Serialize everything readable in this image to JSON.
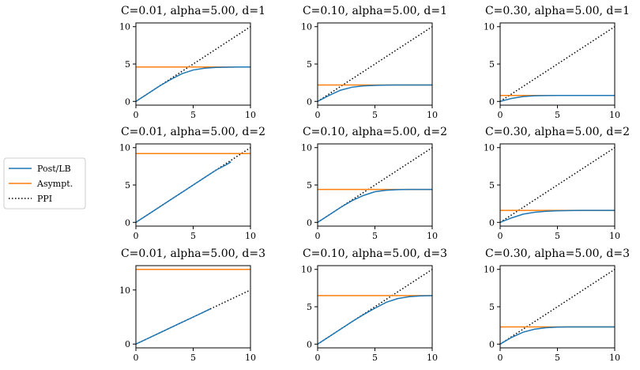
{
  "legend": {
    "entries": [
      {
        "label": "Post/LB",
        "color": "#1f77b4",
        "style": "solid"
      },
      {
        "label": "Asympt.",
        "color": "#ff7f0e",
        "style": "solid"
      },
      {
        "label": "PPI",
        "color": "#000000",
        "style": "dotted"
      }
    ]
  },
  "chart_data": [
    {
      "type": "line",
      "title": "C=0.01, alpha=5.00, d=1",
      "xlim": [
        0,
        10
      ],
      "ylim": [
        -0.5,
        10.5
      ],
      "xticks": [
        0,
        5,
        10
      ],
      "yticks": [
        0,
        5,
        10
      ],
      "asymptote": 4.6,
      "post_lb": {
        "x": [
          0,
          1,
          2,
          3,
          4,
          5,
          6,
          7,
          8,
          9,
          10
        ],
        "y": [
          0,
          1,
          2,
          2.9,
          3.7,
          4.2,
          4.45,
          4.55,
          4.58,
          4.6,
          4.6
        ]
      }
    },
    {
      "type": "line",
      "title": "C=0.10, alpha=5.00, d=1",
      "xlim": [
        0,
        10
      ],
      "ylim": [
        -0.5,
        10.5
      ],
      "xticks": [
        0,
        5,
        10
      ],
      "yticks": [
        0,
        5,
        10
      ],
      "asymptote": 2.2,
      "post_lb": {
        "x": [
          0,
          1,
          2,
          3,
          4,
          5,
          6,
          7,
          8,
          9,
          10
        ],
        "y": [
          0,
          0.8,
          1.5,
          1.9,
          2.08,
          2.15,
          2.18,
          2.2,
          2.2,
          2.2,
          2.2
        ]
      }
    },
    {
      "type": "line",
      "title": "C=0.30, alpha=5.00, d=1",
      "xlim": [
        0,
        10
      ],
      "ylim": [
        -0.5,
        10.5
      ],
      "xticks": [
        0,
        5,
        10
      ],
      "yticks": [
        0,
        5,
        10
      ],
      "asymptote": 0.8,
      "post_lb": {
        "x": [
          0,
          1,
          2,
          3,
          4,
          5,
          6,
          7,
          8,
          9,
          10
        ],
        "y": [
          0,
          0.4,
          0.65,
          0.75,
          0.78,
          0.8,
          0.8,
          0.8,
          0.8,
          0.8,
          0.8
        ]
      }
    },
    {
      "type": "line",
      "title": "C=0.01, alpha=5.00, d=2",
      "xlim": [
        0,
        10
      ],
      "ylim": [
        -0.5,
        10.5
      ],
      "xticks": [
        0,
        5,
        10
      ],
      "yticks": [
        0,
        5,
        10
      ],
      "asymptote": 9.2,
      "post_lb": {
        "x": [
          0,
          1,
          2,
          3,
          4,
          5,
          6,
          7,
          8,
          8.3
        ],
        "y": [
          0,
          1,
          2,
          3,
          4,
          5,
          6,
          7,
          7.8,
          8.1
        ]
      }
    },
    {
      "type": "line",
      "title": "C=0.10, alpha=5.00, d=2",
      "xlim": [
        0,
        10
      ],
      "ylim": [
        -0.5,
        10.5
      ],
      "xticks": [
        0,
        5,
        10
      ],
      "yticks": [
        0,
        5,
        10
      ],
      "asymptote": 4.4,
      "post_lb": {
        "x": [
          0,
          1,
          2,
          3,
          4,
          5,
          6,
          7,
          8,
          9,
          10
        ],
        "y": [
          0,
          1,
          2,
          2.9,
          3.6,
          4.1,
          4.3,
          4.38,
          4.4,
          4.4,
          4.4
        ]
      }
    },
    {
      "type": "line",
      "title": "C=0.30, alpha=5.00, d=2",
      "xlim": [
        0,
        10
      ],
      "ylim": [
        -0.5,
        10.5
      ],
      "xticks": [
        0,
        5,
        10
      ],
      "yticks": [
        0,
        5,
        10
      ],
      "asymptote": 1.6,
      "post_lb": {
        "x": [
          0,
          1,
          2,
          3,
          4,
          5,
          6,
          7,
          8,
          9,
          10
        ],
        "y": [
          0,
          0.6,
          1.1,
          1.35,
          1.48,
          1.55,
          1.58,
          1.6,
          1.6,
          1.6,
          1.6
        ]
      }
    },
    {
      "type": "line",
      "title": "C=0.01, alpha=5.00, d=3",
      "xlim": [
        0,
        10
      ],
      "ylim": [
        -0.7,
        14.5
      ],
      "xticks": [
        0,
        5,
        10
      ],
      "yticks": [
        0,
        10
      ],
      "asymptote": 13.8,
      "post_lb": {
        "x": [
          0,
          1,
          2,
          3,
          4,
          5,
          6,
          6.5
        ],
        "y": [
          0,
          1,
          2,
          3,
          4,
          5,
          6,
          6.5
        ]
      }
    },
    {
      "type": "line",
      "title": "C=0.10, alpha=5.00, d=3",
      "xlim": [
        0,
        10
      ],
      "ylim": [
        -0.5,
        10.5
      ],
      "xticks": [
        0,
        5,
        10
      ],
      "yticks": [
        0,
        5,
        10
      ],
      "asymptote": 6.5,
      "post_lb": {
        "x": [
          0,
          1,
          2,
          3,
          4,
          5,
          6,
          7,
          8,
          9,
          10
        ],
        "y": [
          0,
          1,
          2,
          3,
          3.95,
          4.8,
          5.6,
          6.1,
          6.35,
          6.45,
          6.5
        ]
      }
    },
    {
      "type": "line",
      "title": "C=0.30, alpha=5.00, d=3",
      "xlim": [
        0,
        10
      ],
      "ylim": [
        -0.5,
        10.5
      ],
      "xticks": [
        0,
        5,
        10
      ],
      "yticks": [
        0,
        5,
        10
      ],
      "asymptote": 2.3,
      "post_lb": {
        "x": [
          0,
          1,
          2,
          3,
          4,
          5,
          6,
          7,
          8,
          9,
          10
        ],
        "y": [
          0,
          0.9,
          1.6,
          2.0,
          2.2,
          2.27,
          2.3,
          2.3,
          2.3,
          2.3,
          2.3
        ]
      }
    }
  ]
}
